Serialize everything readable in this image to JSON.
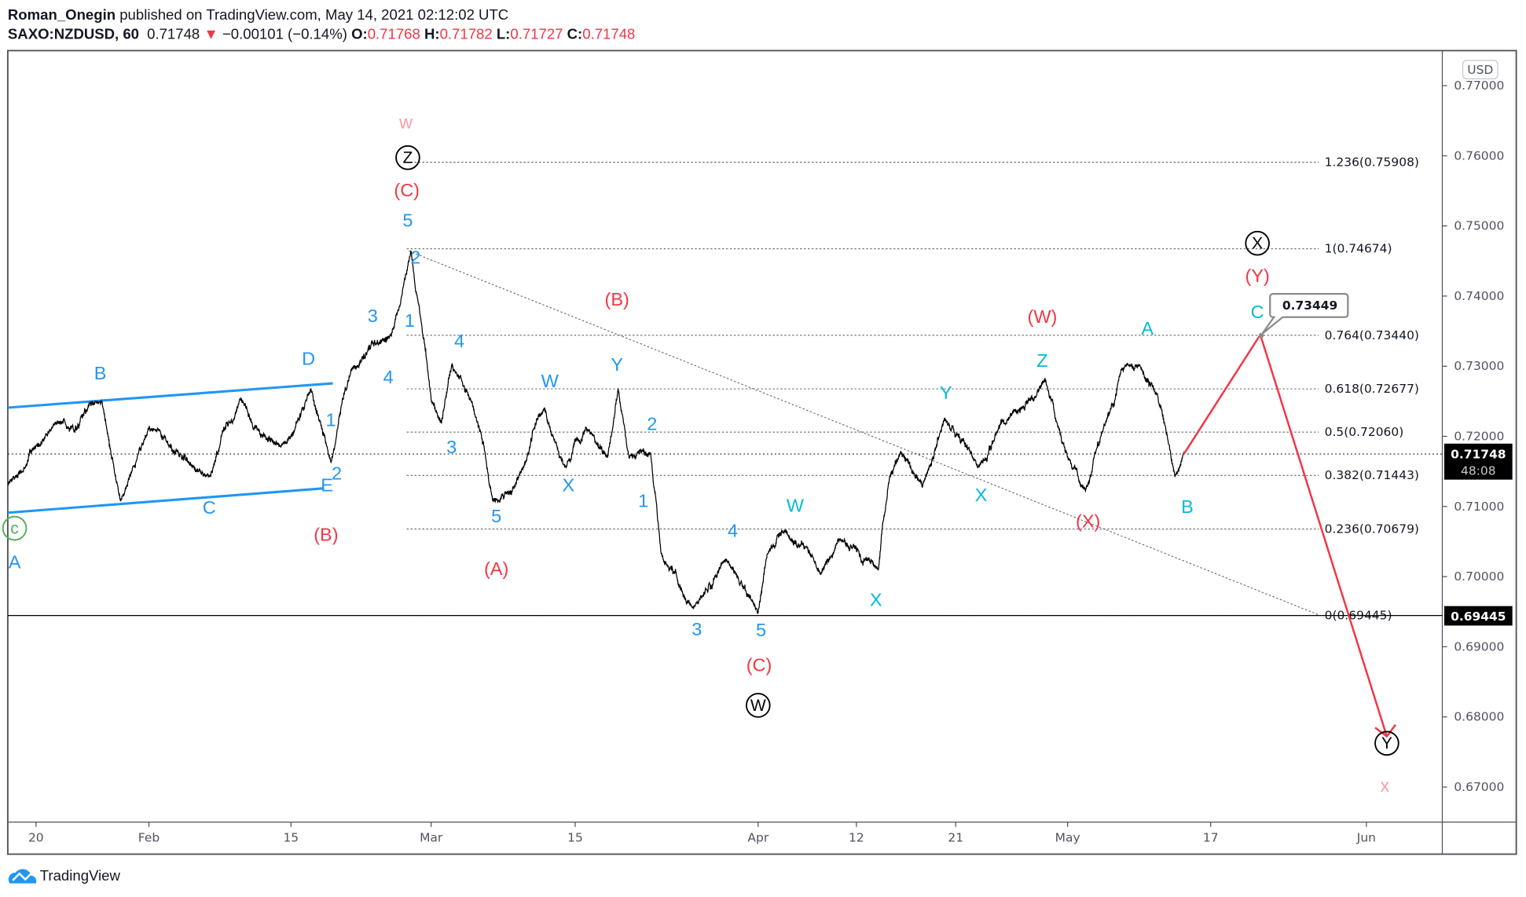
{
  "header": {
    "author": "Roman_Onegin",
    "published": " published on TradingView.com, May 14, 2021 02:12:02 UTC",
    "symbol": "SAXO:NZDUSD, 60",
    "last": "0.71748",
    "change_icon": "down-triangle-icon",
    "change": "−0.00101 (−0.14%)",
    "o_label": "O:",
    "o": "0.71768",
    "h_label": "H:",
    "h": "0.71782",
    "l_label": "L:",
    "l": "0.71727",
    "c_label": "C:",
    "c": "0.71748"
  },
  "footer": {
    "brand": "TradingView",
    "logo_icon": "tradingview-cloud-icon"
  },
  "colors": {
    "wave_blue": "#2196f3",
    "wave_red": "#f23645",
    "wave_cyan": "#00bcd4",
    "wave_pink": "#f7a1a6",
    "wave_green": "#4caf50",
    "price": "#000000",
    "arrow": "#f23645"
  },
  "chart_data": {
    "type": "line",
    "symbol": "SAXO:NZDUSD",
    "interval": "60",
    "currency": "USD",
    "ylim": [
      0.665,
      0.7725
    ],
    "y_ticks": [
      "0.77000",
      "0.76000",
      "0.75000",
      "0.74000",
      "0.73000",
      "0.72000",
      "0.71000",
      "0.70000",
      "0.69000",
      "0.68000",
      "0.67000"
    ],
    "x_ticks": [
      "20",
      "Feb",
      "15",
      "Mar",
      "15",
      "Apr",
      "12",
      "21",
      "May",
      "17",
      "Jun"
    ],
    "grid": false,
    "last_price": "0.71748",
    "countdown": "48:08",
    "marked_price": "0.69445",
    "approx_path": [
      [
        "2021-01-17",
        0.7133
      ],
      [
        "2021-01-22",
        0.7219
      ],
      [
        "2021-01-27",
        0.7249
      ],
      [
        "2021-01-29",
        0.7108
      ],
      [
        "2021-02-01",
        0.7212
      ],
      [
        "2021-02-07",
        0.7142
      ],
      [
        "2021-02-10",
        0.7253
      ],
      [
        "2021-02-14",
        0.7184
      ],
      [
        "2021-02-17",
        0.7267
      ],
      [
        "2021-02-19",
        0.7163
      ],
      [
        "2021-02-21",
        0.7295
      ],
      [
        "2021-02-25",
        0.7344
      ],
      [
        "2021-02-27",
        0.7464
      ],
      [
        "2021-02-28",
        0.7364
      ],
      [
        "2021-03-01",
        0.7253
      ],
      [
        "2021-03-02",
        0.7219
      ],
      [
        "2021-03-03",
        0.7302
      ],
      [
        "2021-03-05",
        0.7247
      ],
      [
        "2021-03-07",
        0.7108
      ],
      [
        "2021-03-10",
        0.7156
      ],
      [
        "2021-03-12",
        0.724
      ],
      [
        "2021-03-14",
        0.7156
      ],
      [
        "2021-03-16",
        0.7212
      ],
      [
        "2021-03-18",
        0.717
      ],
      [
        "2021-03-19",
        0.7267
      ],
      [
        "2021-03-20",
        0.717
      ],
      [
        "2021-03-22",
        0.7177
      ],
      [
        "2021-03-23",
        0.7032
      ],
      [
        "2021-03-26",
        0.6955
      ],
      [
        "2021-03-29",
        0.7025
      ],
      [
        "2021-04-01",
        0.6948
      ],
      [
        "2021-04-02",
        0.7032
      ],
      [
        "2021-04-04",
        0.7066
      ],
      [
        "2021-04-08",
        0.7004
      ],
      [
        "2021-04-10",
        0.7053
      ],
      [
        "2021-04-14",
        0.7011
      ],
      [
        "2021-04-15",
        0.7142
      ],
      [
        "2021-04-16",
        0.7177
      ],
      [
        "2021-04-18",
        0.7129
      ],
      [
        "2021-04-20",
        0.7226
      ],
      [
        "2021-04-23",
        0.7156
      ],
      [
        "2021-04-26",
        0.7233
      ],
      [
        "2021-04-29",
        0.7281
      ],
      [
        "2021-05-01",
        0.717
      ],
      [
        "2021-05-03",
        0.7122
      ],
      [
        "2021-05-05",
        0.7212
      ],
      [
        "2021-05-07",
        0.7295
      ],
      [
        "2021-05-09",
        0.7302
      ],
      [
        "2021-05-11",
        0.726
      ],
      [
        "2021-05-13",
        0.7142
      ],
      [
        "2021-05-14",
        0.7175
      ]
    ],
    "projection": [
      [
        "2021-05-14",
        0.71748
      ],
      [
        "2021-05-21",
        0.73449
      ],
      [
        "2021-06-03",
        0.68
      ]
    ],
    "callout": "0.73449",
    "fib_levels": [
      {
        "label": "1.236(0.75908)",
        "price": 0.75908
      },
      {
        "label": "1(0.74674)",
        "price": 0.74674
      },
      {
        "label": "0.764(0.73440)",
        "price": 0.7344
      },
      {
        "label": "0.618(0.72677)",
        "price": 0.72677
      },
      {
        "label": "0.5(0.72060)",
        "price": 0.7206
      },
      {
        "label": "0.382(0.71443)",
        "price": 0.71443
      },
      {
        "label": "0.236(0.70679)",
        "price": 0.70679
      },
      {
        "label": "0(0.69445)",
        "price": 0.69445
      }
    ],
    "wave_labels": [
      {
        "text": "c",
        "color": "green",
        "circled": true
      },
      {
        "text": "A",
        "color": "blue"
      },
      {
        "text": "B",
        "color": "blue"
      },
      {
        "text": "C",
        "color": "blue"
      },
      {
        "text": "D",
        "color": "blue"
      },
      {
        "text": "E",
        "color": "blue"
      },
      {
        "text": "1",
        "color": "blue"
      },
      {
        "text": "2",
        "color": "blue"
      },
      {
        "text": "(B)",
        "color": "red"
      },
      {
        "text": "3",
        "color": "blue"
      },
      {
        "text": "4",
        "color": "blue"
      },
      {
        "text": "1",
        "color": "blue"
      },
      {
        "text": "2",
        "color": "blue"
      },
      {
        "text": "5",
        "color": "blue"
      },
      {
        "text": "(C)",
        "color": "red"
      },
      {
        "text": "Z",
        "color": "black",
        "circled": true
      },
      {
        "text": "w",
        "color": "pink"
      },
      {
        "text": "4",
        "color": "blue"
      },
      {
        "text": "3",
        "color": "blue"
      },
      {
        "text": "5",
        "color": "blue"
      },
      {
        "text": "(A)",
        "color": "red"
      },
      {
        "text": "W",
        "color": "blue"
      },
      {
        "text": "X",
        "color": "blue"
      },
      {
        "text": "Y",
        "color": "blue"
      },
      {
        "text": "(B)",
        "color": "red"
      },
      {
        "text": "2",
        "color": "blue"
      },
      {
        "text": "1",
        "color": "blue"
      },
      {
        "text": "4",
        "color": "blue"
      },
      {
        "text": "3",
        "color": "blue"
      },
      {
        "text": "5",
        "color": "blue"
      },
      {
        "text": "(C)",
        "color": "red"
      },
      {
        "text": "W",
        "color": "black",
        "circled": true
      },
      {
        "text": "W",
        "color": "cyan"
      },
      {
        "text": "X",
        "color": "cyan"
      },
      {
        "text": "Y",
        "color": "cyan"
      },
      {
        "text": "X",
        "color": "cyan"
      },
      {
        "text": "Z",
        "color": "cyan"
      },
      {
        "text": "(W)",
        "color": "red"
      },
      {
        "text": "(X)",
        "color": "red"
      },
      {
        "text": "A",
        "color": "cyan"
      },
      {
        "text": "B",
        "color": "cyan"
      },
      {
        "text": "C",
        "color": "cyan"
      },
      {
        "text": "(Y)",
        "color": "red"
      },
      {
        "text": "X",
        "color": "black",
        "circled": true
      },
      {
        "text": "Y",
        "color": "black",
        "circled": true
      },
      {
        "text": "x",
        "color": "pink"
      }
    ]
  }
}
